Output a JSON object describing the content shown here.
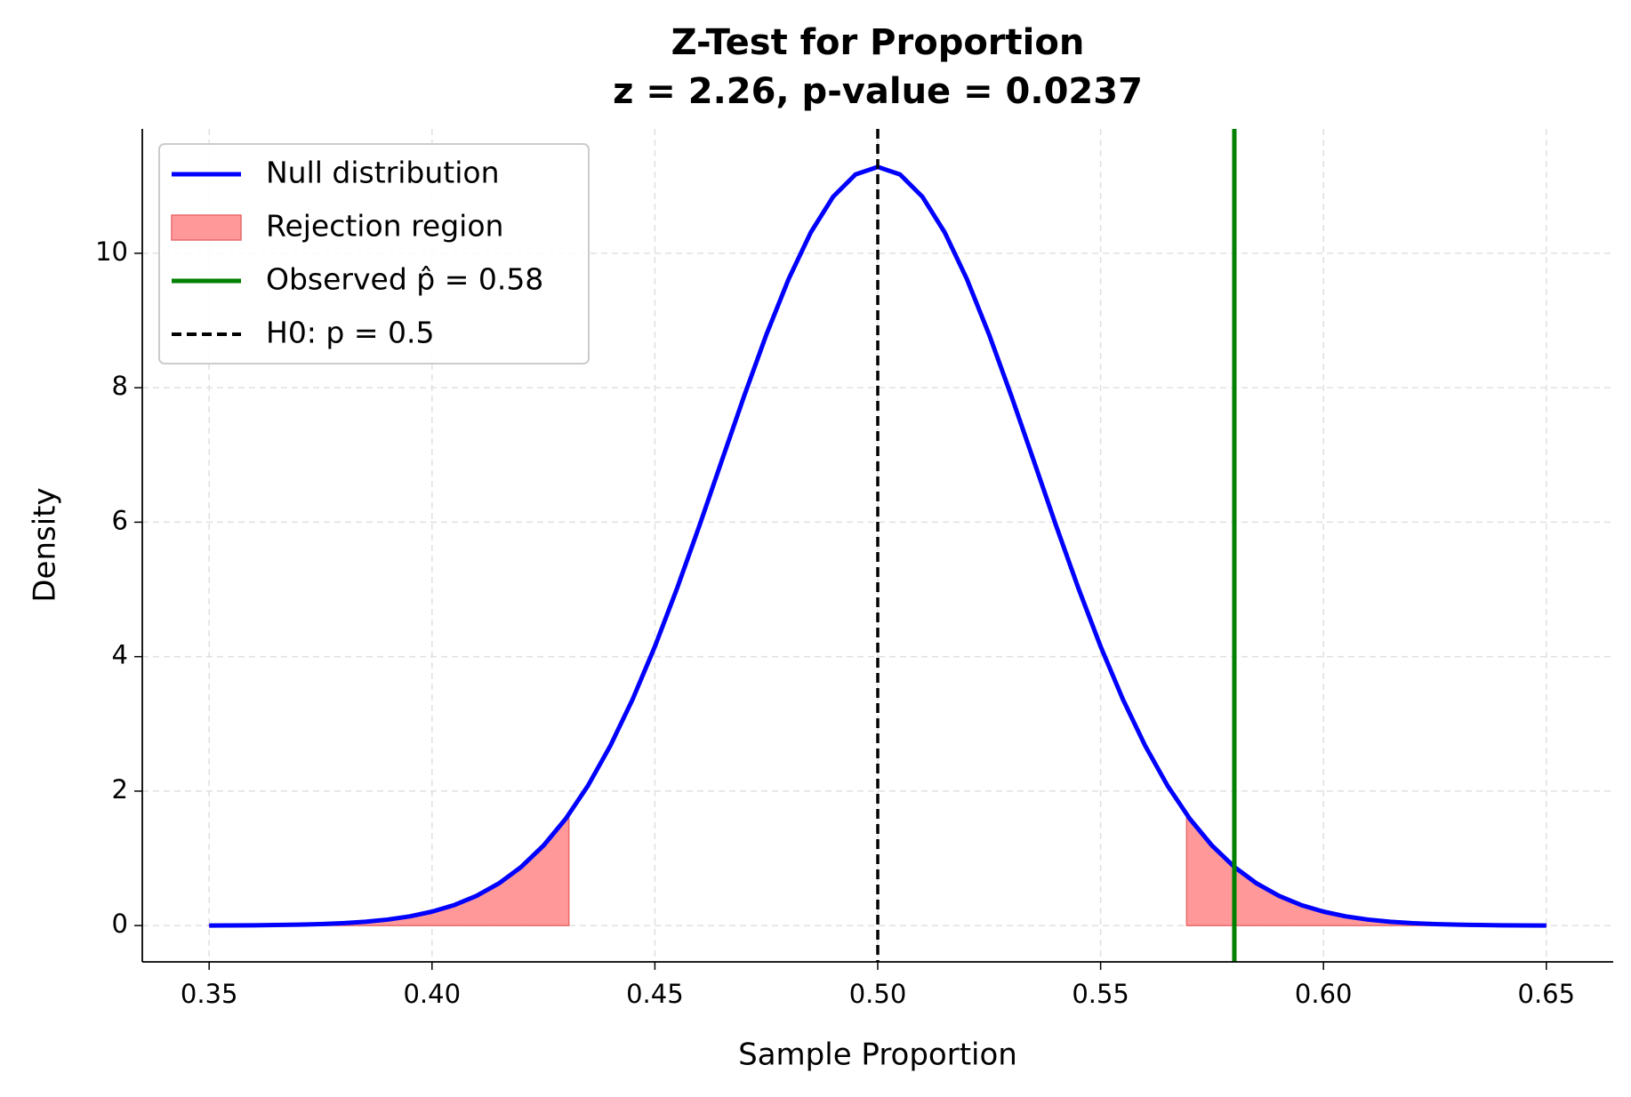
{
  "chart_data": {
    "type": "line",
    "title": "Z-Test for Proportion",
    "subtitle": "z = 2.26, p-value = 0.0237",
    "x_label": "Sample Proportion",
    "y_label": "Density",
    "xlim": [
      0.335,
      0.665
    ],
    "ylim": [
      -0.54,
      11.85
    ],
    "xticks": [
      0.35,
      {
        "value": 0.4,
        "label": "0.40"
      },
      0.45,
      {
        "value": 0.5,
        "label": "0.50"
      },
      0.55,
      {
        "value": 0.6,
        "label": "0.60"
      },
      0.65
    ],
    "yticks": [
      0,
      2,
      4,
      6,
      8,
      10
    ],
    "grid": true,
    "legend": "upper left",
    "series": [
      {
        "name": "Null distribution",
        "color": "#0000ff",
        "x": [
          0.35,
          0.355,
          0.36,
          0.365,
          0.37,
          0.375,
          0.38,
          0.385,
          0.39,
          0.395,
          0.4,
          0.405,
          0.41,
          0.415,
          0.42,
          0.425,
          0.43,
          0.435,
          0.44,
          0.445,
          0.45,
          0.455,
          0.46,
          0.465,
          0.47,
          0.475,
          0.48,
          0.485,
          0.49,
          0.495,
          0.5,
          0.505,
          0.51,
          0.515,
          0.52,
          0.525,
          0.53,
          0.535,
          0.54,
          0.545,
          0.55,
          0.555,
          0.56,
          0.565,
          0.57,
          0.575,
          0.58,
          0.585,
          0.59,
          0.595,
          0.6,
          0.605,
          0.61,
          0.615,
          0.62,
          0.625,
          0.63,
          0.635,
          0.64,
          0.645,
          0.65
        ],
        "values": [
          0.001,
          0.002,
          0.004,
          0.008,
          0.013,
          0.022,
          0.036,
          0.057,
          0.089,
          0.137,
          0.207,
          0.305,
          0.442,
          0.627,
          0.872,
          1.189,
          1.589,
          2.082,
          2.674,
          3.365,
          4.151,
          5.02,
          5.95,
          6.913,
          7.873,
          8.788,
          9.616,
          10.313,
          10.842,
          11.172,
          11.284,
          11.172,
          10.842,
          10.313,
          9.616,
          8.788,
          7.873,
          6.913,
          5.95,
          5.02,
          4.151,
          3.365,
          2.674,
          2.082,
          1.589,
          1.189,
          0.872,
          0.627,
          0.442,
          0.305,
          0.207,
          0.137,
          0.089,
          0.057,
          0.036,
          0.022,
          0.013,
          0.008,
          0.004,
          0.002,
          0.001
        ]
      },
      {
        "name": "Rejection region",
        "type": "area",
        "color": "#ff9999",
        "edge_color": "#e8696b",
        "x": [
          0.35,
          0.355,
          0.36,
          0.365,
          0.37,
          0.375,
          0.38,
          0.385,
          0.39,
          0.395,
          0.4,
          0.405,
          0.41,
          0.415,
          0.42,
          0.425,
          0.43,
          0.4307,
          null,
          0.5693,
          0.57,
          0.575,
          0.58,
          0.585,
          0.59,
          0.595,
          0.6,
          0.605,
          0.61,
          0.615,
          0.62,
          0.625,
          0.63,
          0.635,
          0.64,
          0.645,
          0.65
        ],
        "values": [
          0.001,
          0.002,
          0.004,
          0.008,
          0.013,
          0.022,
          0.036,
          0.057,
          0.089,
          0.137,
          0.207,
          0.305,
          0.442,
          0.627,
          0.872,
          1.189,
          1.589,
          1.652,
          null,
          1.652,
          1.589,
          1.189,
          0.872,
          0.627,
          0.442,
          0.305,
          0.207,
          0.137,
          0.089,
          0.057,
          0.036,
          0.022,
          0.013,
          0.008,
          0.004,
          0.002,
          0.001
        ]
      }
    ],
    "vlines": [
      {
        "name": "Observed p̂ = 0.58",
        "x": 0.58,
        "color": "#008000"
      },
      {
        "name": "H0: p = 0.5",
        "x": 0.5,
        "color": "#000000",
        "dashed": true
      }
    ]
  }
}
